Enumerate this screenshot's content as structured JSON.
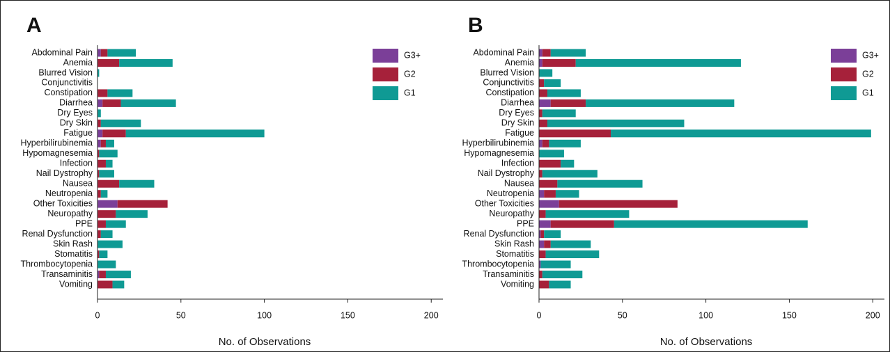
{
  "chart_data": [
    {
      "type": "bar",
      "orientation": "horizontal",
      "stacked": true,
      "panel": "A",
      "categories": [
        "Abdominal Pain",
        "Anemia",
        "Blurred Vision",
        "Conjunctivitis",
        "Constipation",
        "Diarrhea",
        "Dry Eyes",
        "Dry Skin",
        "Fatigue",
        "Hyperbilirubinemia",
        "Hypomagnesemia",
        "Infection",
        "Nail Dystrophy",
        "Nausea",
        "Neutropenia",
        "Other Toxicities",
        "Neuropathy",
        "PPE",
        "Renal Dysfunction",
        "Skin Rash",
        "Stomatitis",
        "Thrombocytopenia",
        "Transaminitis",
        "Vomiting"
      ],
      "series": [
        {
          "name": "G3+",
          "color": "#7b3f98",
          "values": [
            2,
            0,
            0,
            0,
            0,
            3,
            0,
            0,
            3,
            2,
            0,
            0,
            0,
            0,
            0,
            12,
            0,
            0,
            0,
            0,
            0,
            0,
            1,
            0
          ]
        },
        {
          "name": "G2",
          "color": "#a6213a",
          "values": [
            4,
            13,
            0,
            0,
            6,
            11,
            0,
            2,
            14,
            3,
            1,
            5,
            1,
            13,
            2,
            30,
            11,
            5,
            2,
            0,
            1,
            0,
            4,
            9
          ]
        },
        {
          "name": "G1",
          "color": "#0f9a94",
          "values": [
            17,
            32,
            1,
            0,
            15,
            33,
            2,
            24,
            83,
            5,
            11,
            4,
            9,
            21,
            4,
            0,
            19,
            12,
            7,
            15,
            5,
            11,
            15,
            7
          ]
        }
      ],
      "xlim": [
        0,
        207
      ],
      "xticks": [
        0,
        50,
        100,
        150,
        200
      ],
      "xlabel": "No. of Observations",
      "legend": "upper right"
    },
    {
      "type": "bar",
      "orientation": "horizontal",
      "stacked": true,
      "panel": "B",
      "categories": [
        "Abdominal Pain",
        "Anemia",
        "Blurred Vision",
        "Conjunctivitis",
        "Constipation",
        "Diarrhea",
        "Dry Eyes",
        "Dry Skin",
        "Fatigue",
        "Hyperbilirubinemia",
        "Hypomagnesemia",
        "Infection",
        "Nail Dystrophy",
        "Nausea",
        "Neutropenia",
        "Other Toxicities",
        "Neuropathy",
        "PPE",
        "Renal Dysfunction",
        "Skin Rash",
        "Stomatitis",
        "Thrombocytopenia",
        "Transaminitis",
        "Vomiting"
      ],
      "series": [
        {
          "name": "G3+",
          "color": "#7b3f98",
          "values": [
            2,
            2,
            0,
            0,
            0,
            7,
            0,
            0,
            0,
            2,
            0,
            0,
            0,
            0,
            3,
            12,
            0,
            7,
            1,
            3,
            0,
            1,
            0,
            0
          ]
        },
        {
          "name": "G2",
          "color": "#a6213a",
          "values": [
            5,
            20,
            0,
            3,
            5,
            21,
            2,
            5,
            43,
            4,
            0,
            13,
            2,
            11,
            7,
            71,
            4,
            38,
            2,
            4,
            4,
            0,
            2,
            6
          ]
        },
        {
          "name": "G1",
          "color": "#0f9a94",
          "values": [
            21,
            99,
            8,
            10,
            20,
            89,
            20,
            82,
            156,
            19,
            15,
            8,
            33,
            51,
            14,
            0,
            50,
            116,
            10,
            24,
            32,
            18,
            24,
            13
          ]
        }
      ],
      "xlim": [
        0,
        207
      ],
      "xticks": [
        0,
        50,
        100,
        150,
        200
      ],
      "xlabel": "No. of Observations",
      "legend": "upper right"
    }
  ]
}
